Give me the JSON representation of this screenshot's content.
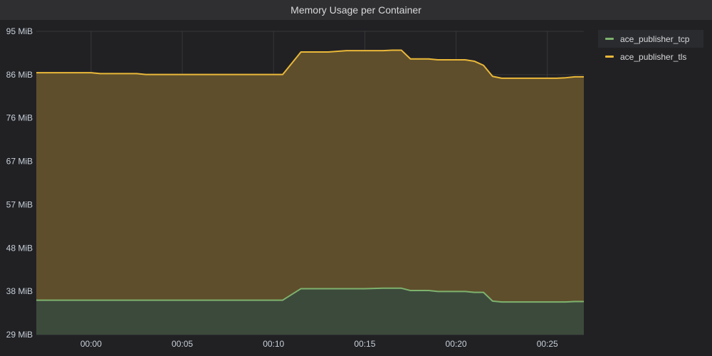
{
  "panel": {
    "title": "Memory Usage per Container"
  },
  "legend": {
    "items": [
      {
        "label": "ace_publisher_tcp",
        "color": "#7eb26d"
      },
      {
        "label": "ace_publisher_tls",
        "color": "#eab839"
      }
    ]
  },
  "chart_data": {
    "type": "area",
    "title": "Memory Usage per Container",
    "xlabel": "",
    "ylabel": "",
    "x_unit": "minutes",
    "xlim": [
      -3.0,
      27.0
    ],
    "ylim": [
      29,
      95
    ],
    "y_ticks": [
      {
        "value": 29,
        "label": "29 MiB"
      },
      {
        "value": 38.43,
        "label": "38 MiB"
      },
      {
        "value": 47.86,
        "label": "48 MiB"
      },
      {
        "value": 57.29,
        "label": "57 MiB"
      },
      {
        "value": 66.71,
        "label": "67 MiB"
      },
      {
        "value": 76.14,
        "label": "76 MiB"
      },
      {
        "value": 85.57,
        "label": "86 MiB"
      },
      {
        "value": 95,
        "label": "95 MiB"
      }
    ],
    "x_ticks": [
      {
        "value": 0,
        "label": "00:00"
      },
      {
        "value": 5,
        "label": "00:05"
      },
      {
        "value": 10,
        "label": "00:10"
      },
      {
        "value": 15,
        "label": "00:15"
      },
      {
        "value": 20,
        "label": "00:20"
      },
      {
        "value": 25,
        "label": "00:25"
      }
    ],
    "grid": true,
    "stacked": true,
    "legend_position": "right",
    "series": [
      {
        "name": "ace_publisher_tcp",
        "color": "#7eb26d",
        "fill": "#3c4a3c",
        "points": [
          [
            -3.0,
            36.5
          ],
          [
            10.0,
            36.5
          ],
          [
            10.5,
            36.5
          ],
          [
            11.5,
            39.0
          ],
          [
            15.0,
            39.0
          ],
          [
            16.0,
            39.1
          ],
          [
            17.0,
            39.1
          ],
          [
            17.5,
            38.6
          ],
          [
            18.5,
            38.6
          ],
          [
            19.0,
            38.4
          ],
          [
            20.5,
            38.4
          ],
          [
            21.0,
            38.2
          ],
          [
            21.5,
            38.2
          ],
          [
            22.0,
            36.3
          ],
          [
            22.5,
            36.1
          ],
          [
            26.0,
            36.1
          ],
          [
            26.5,
            36.2
          ],
          [
            27.0,
            36.2
          ]
        ]
      },
      {
        "name": "ace_publisher_tls",
        "color": "#eab839",
        "fill": "#5e4e2c",
        "points": [
          [
            -3.0,
            86.0
          ],
          [
            0.0,
            86.0
          ],
          [
            0.5,
            85.8
          ],
          [
            2.5,
            85.8
          ],
          [
            3.0,
            85.6
          ],
          [
            10.0,
            85.6
          ],
          [
            10.5,
            85.6
          ],
          [
            11.5,
            90.5
          ],
          [
            13.0,
            90.5
          ],
          [
            14.0,
            90.8
          ],
          [
            16.0,
            90.8
          ],
          [
            16.5,
            90.9
          ],
          [
            17.0,
            90.9
          ],
          [
            17.5,
            89.0
          ],
          [
            18.5,
            89.0
          ],
          [
            19.0,
            88.8
          ],
          [
            20.5,
            88.8
          ],
          [
            21.0,
            88.5
          ],
          [
            21.5,
            87.6
          ],
          [
            22.0,
            85.2
          ],
          [
            22.5,
            84.8
          ],
          [
            25.5,
            84.8
          ],
          [
            26.0,
            84.9
          ],
          [
            26.5,
            85.1
          ],
          [
            27.0,
            85.1
          ]
        ]
      }
    ]
  }
}
